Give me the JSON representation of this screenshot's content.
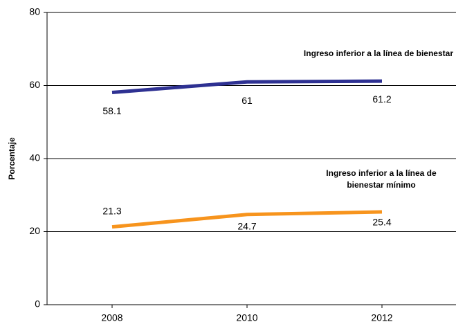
{
  "chart_data": {
    "type": "line",
    "y_label": "Porcentaje",
    "categories": [
      "2008",
      "2010",
      "2012"
    ],
    "series": [
      {
        "name": "Ingreso inferior a la línea de bienestar",
        "color": "#2e3192",
        "values": [
          58.1,
          61.0,
          61.2
        ]
      },
      {
        "name": "Ingreso inferior a la línea de bienestar mínimo",
        "color": "#f7941d",
        "values": [
          21.3,
          24.7,
          25.4
        ]
      }
    ],
    "ylim": [
      0,
      80
    ],
    "yticks": [
      0,
      20,
      40,
      60,
      80
    ],
    "grid": true
  }
}
